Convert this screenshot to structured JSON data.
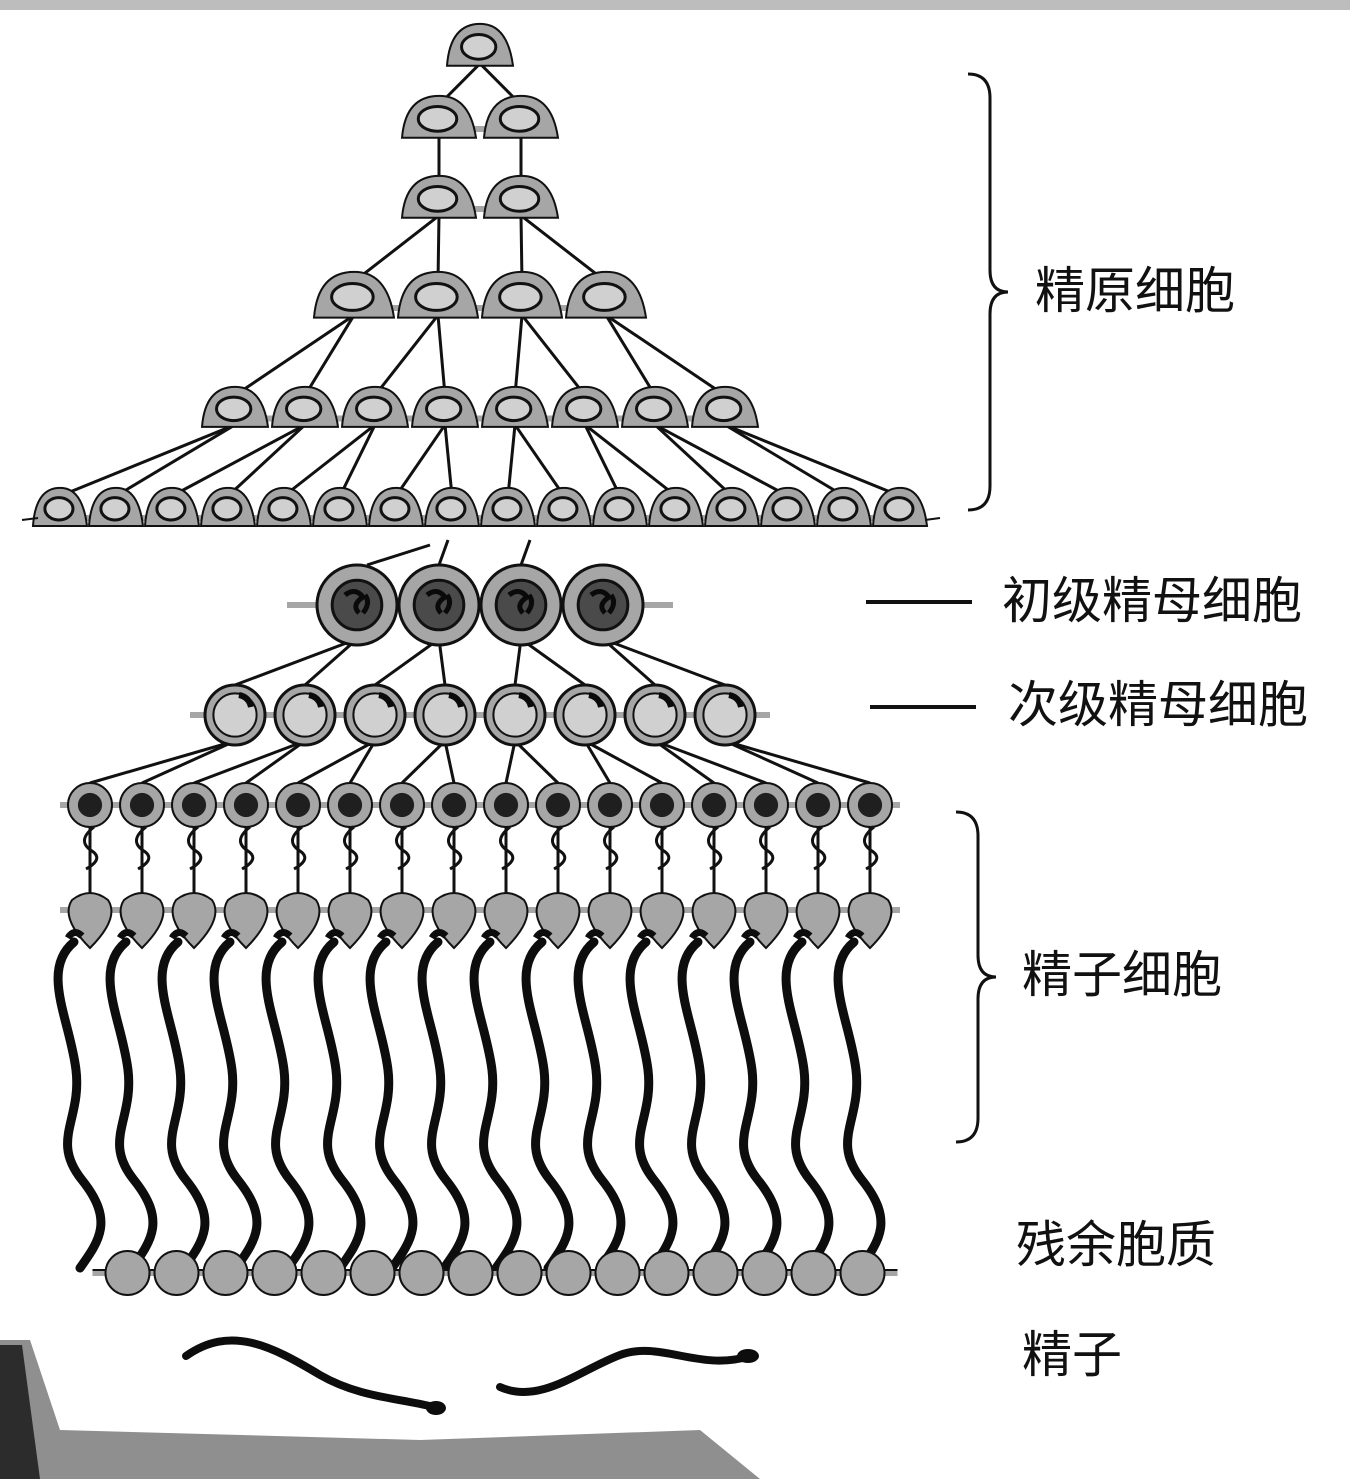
{
  "labels": {
    "spermatogonia": "精原细胞",
    "primary_spermatocyte": "初级精母细胞",
    "secondary_spermatocyte": "次级精母细胞",
    "spermatid": "精子细胞",
    "residual_cytoplasm": "残余胞质",
    "sperm": "精子"
  },
  "counts": {
    "spermatogonia_rows": [
      1,
      2,
      2,
      4,
      8,
      16
    ],
    "primary_spermatocytes": 4,
    "secondary_spermatocytes": 8,
    "spermatids": 16,
    "residual_bodies": 16,
    "sperm_shown": 2
  },
  "colors": {
    "cell_fill": "#a6a6a6",
    "nucleus_fill": "#d0d0d0",
    "dark_nucleus": "#1f1f1f",
    "stroke": "#111111",
    "background": "#ffffff"
  }
}
